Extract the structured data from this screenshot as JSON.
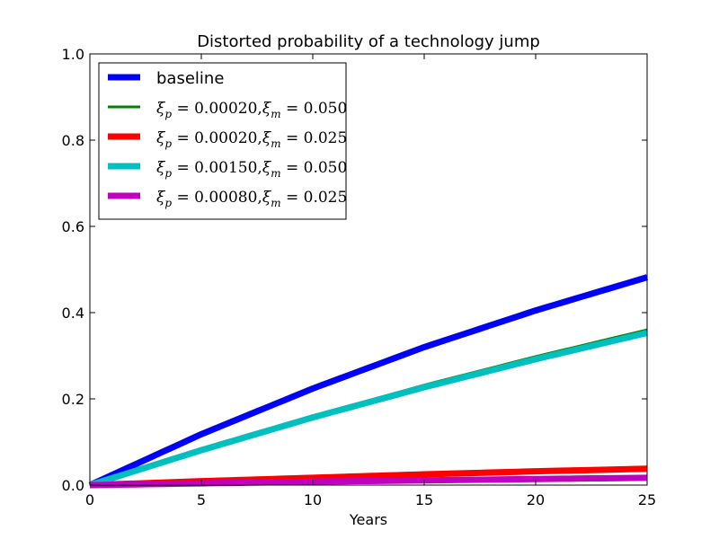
{
  "chart_data": {
    "type": "line",
    "title": "Distorted probability of a technology jump",
    "xlabel": "Years",
    "ylabel": "",
    "xlim": [
      0,
      25
    ],
    "ylim": [
      0,
      1.0
    ],
    "x_ticks": [
      "0",
      "5",
      "10",
      "15",
      "20",
      "25"
    ],
    "y_ticks": [
      "0.0",
      "0.2",
      "0.4",
      "0.6",
      "0.8",
      "1.0"
    ],
    "grid": false,
    "legend_position": "top-left",
    "x": [
      0,
      5,
      10,
      15,
      20,
      25
    ],
    "series": [
      {
        "name": "baseline",
        "color": "#0000ff",
        "width": 7,
        "values": [
          0.0,
          0.118,
          0.224,
          0.32,
          0.405,
          0.482
        ]
      },
      {
        "name": "ξp = 0.00020, ξm = 0.050",
        "legend": {
          "p": "0.00020",
          "m": "0.050"
        },
        "color": "#008000",
        "width": 3,
        "values": [
          0.0,
          0.083,
          0.16,
          0.232,
          0.298,
          0.36
        ]
      },
      {
        "name": "ξp = 0.00020, ξm = 0.025",
        "legend": {
          "p": "0.00020",
          "m": "0.025"
        },
        "color": "#ff0000",
        "width": 7,
        "values": [
          0.0,
          0.009,
          0.017,
          0.025,
          0.032,
          0.038
        ]
      },
      {
        "name": "ξp = 0.00150, ξm = 0.050",
        "legend": {
          "p": "0.00150",
          "m": "0.050"
        },
        "color": "#00bfbf",
        "width": 7,
        "values": [
          0.0,
          0.081,
          0.157,
          0.227,
          0.292,
          0.353
        ]
      },
      {
        "name": "ξp = 0.00080, ξm = 0.025",
        "legend": {
          "p": "0.00080",
          "m": "0.025"
        },
        "color": "#bf00bf",
        "width": 7,
        "values": [
          0.0,
          0.004,
          0.008,
          0.011,
          0.014,
          0.017
        ]
      }
    ]
  }
}
